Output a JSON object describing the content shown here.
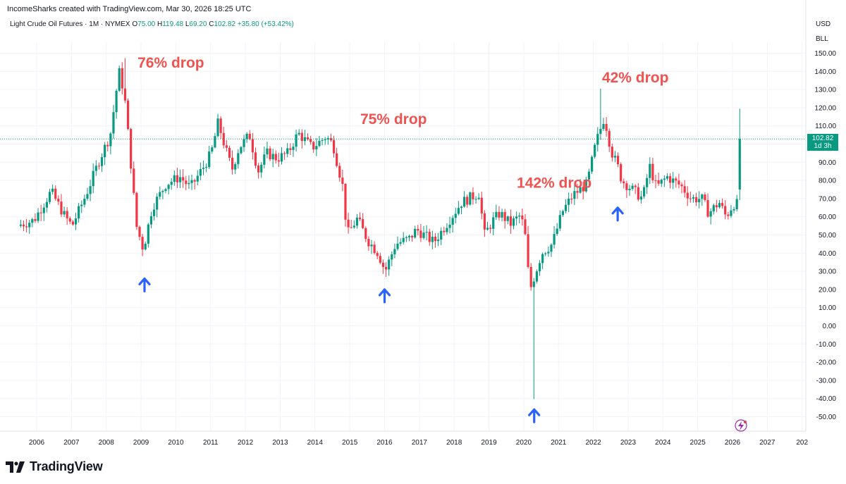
{
  "header": {
    "credit": "IncomeSharks created with TradingView.com, Mar 30, 2026 18:25 UTC"
  },
  "legend": {
    "symbol": "Light Crude Oil Futures · 1M · NYMEX",
    "o_label": "O",
    "o_value": "75.00",
    "h_label": "H",
    "h_value": "119.48",
    "l_label": "L",
    "l_value": "69.20",
    "c_label": "C",
    "c_value": "102.82",
    "change": "+35.80 (+53.42%)"
  },
  "axis_header": {
    "currency": "USD",
    "unit": "BLL"
  },
  "price_tag": {
    "price": "102.82",
    "countdown": "1d 3h"
  },
  "footer": {
    "brand": "TradingView"
  },
  "colors": {
    "up": "#089981",
    "down": "#f23645",
    "annotation": "#ef5350",
    "arrow": "#2962ff",
    "last_line": "#089981"
  },
  "chart_data": {
    "type": "candlestick",
    "title": "Light Crude Oil Futures · 1M · NYMEX",
    "ylim": [
      -55,
      155
    ],
    "xlim": [
      2005.5,
      2027.9
    ],
    "y_ticks": [
      "150.00",
      "140.00",
      "130.00",
      "120.00",
      "110.00",
      "100.00",
      "90.00",
      "80.00",
      "70.00",
      "60.00",
      "50.00",
      "40.00",
      "30.00",
      "20.00",
      "10.00",
      "0.00",
      "-10.00",
      "-20.00",
      "-30.00",
      "-40.00",
      "-50.00"
    ],
    "x_ticks": [
      "2006",
      "2007",
      "2008",
      "2009",
      "2010",
      "2011",
      "2012",
      "2013",
      "2014",
      "2015",
      "2016",
      "2017",
      "2018",
      "2019",
      "2020",
      "2021",
      "2022",
      "2023",
      "2024",
      "2025",
      "2026",
      "2027",
      "202"
    ],
    "anchors": [
      [
        2005.5,
        55
      ],
      [
        2006.0,
        58
      ],
      [
        2006.5,
        74
      ],
      [
        2006.9,
        60
      ],
      [
        2007.1,
        55
      ],
      [
        2007.5,
        72
      ],
      [
        2007.9,
        92
      ],
      [
        2008.2,
        105
      ],
      [
        2008.45,
        140
      ],
      [
        2008.6,
        128
      ],
      [
        2008.75,
        98
      ],
      [
        2008.95,
        55
      ],
      [
        2009.15,
        42
      ],
      [
        2009.4,
        65
      ],
      [
        2009.8,
        78
      ],
      [
        2010.2,
        82
      ],
      [
        2010.5,
        76
      ],
      [
        2010.9,
        88
      ],
      [
        2011.1,
        95
      ],
      [
        2011.3,
        112
      ],
      [
        2011.5,
        98
      ],
      [
        2011.7,
        86
      ],
      [
        2011.9,
        98
      ],
      [
        2012.2,
        105
      ],
      [
        2012.45,
        85
      ],
      [
        2012.7,
        95
      ],
      [
        2013.0,
        92
      ],
      [
        2013.3,
        95
      ],
      [
        2013.6,
        106
      ],
      [
        2014.0,
        98
      ],
      [
        2014.4,
        104
      ],
      [
        2014.6,
        100
      ],
      [
        2014.9,
        75
      ],
      [
        2015.0,
        50
      ],
      [
        2015.3,
        59
      ],
      [
        2015.6,
        47
      ],
      [
        2015.9,
        40
      ],
      [
        2016.1,
        30
      ],
      [
        2016.4,
        45
      ],
      [
        2016.8,
        48
      ],
      [
        2017.0,
        53
      ],
      [
        2017.5,
        46
      ],
      [
        2017.9,
        57
      ],
      [
        2018.3,
        68
      ],
      [
        2018.8,
        73
      ],
      [
        2018.95,
        50
      ],
      [
        2019.2,
        58
      ],
      [
        2019.4,
        62
      ],
      [
        2019.7,
        56
      ],
      [
        2020.0,
        61
      ],
      [
        2020.15,
        47
      ],
      [
        2020.25,
        19
      ],
      [
        2020.35,
        25
      ],
      [
        2020.6,
        40
      ],
      [
        2020.9,
        45
      ],
      [
        2021.2,
        63
      ],
      [
        2021.5,
        72
      ],
      [
        2021.9,
        78
      ],
      [
        2022.15,
        100
      ],
      [
        2022.4,
        115
      ],
      [
        2022.6,
        96
      ],
      [
        2022.8,
        87
      ],
      [
        2022.9,
        80
      ],
      [
        2023.2,
        75
      ],
      [
        2023.5,
        70
      ],
      [
        2023.7,
        88
      ],
      [
        2023.9,
        76
      ],
      [
        2024.2,
        82
      ],
      [
        2024.6,
        77
      ],
      [
        2024.9,
        70
      ],
      [
        2025.2,
        70
      ],
      [
        2025.4,
        62
      ],
      [
        2025.7,
        68
      ],
      [
        2025.9,
        60
      ],
      [
        2026.1,
        67
      ]
    ],
    "last_candle": {
      "date": "2026-03",
      "open": 75.0,
      "high": 119.48,
      "low": 69.2,
      "close": 102.82,
      "change": 35.8,
      "change_pct": 53.42
    },
    "last_price_line": 102.82,
    "extremes": [
      {
        "date": "2008-07",
        "high": 147.27
      },
      {
        "date": "2020-04",
        "low": -40.32
      },
      {
        "date": "2022-03",
        "high": 130.5
      }
    ],
    "annotations": [
      {
        "text": "76% drop",
        "x": 2008.9,
        "y": 142
      },
      {
        "text": "75% drop",
        "x": 2015.3,
        "y": 111
      },
      {
        "text": "142% drop",
        "x": 2019.8,
        "y": 76
      },
      {
        "text": "42% drop",
        "x": 2022.25,
        "y": 134
      }
    ],
    "arrows": [
      {
        "x": 2009.1,
        "y": 26
      },
      {
        "x": 2016.0,
        "y": 20
      },
      {
        "x": 2020.3,
        "y": -46
      },
      {
        "x": 2022.7,
        "y": 65
      }
    ]
  }
}
